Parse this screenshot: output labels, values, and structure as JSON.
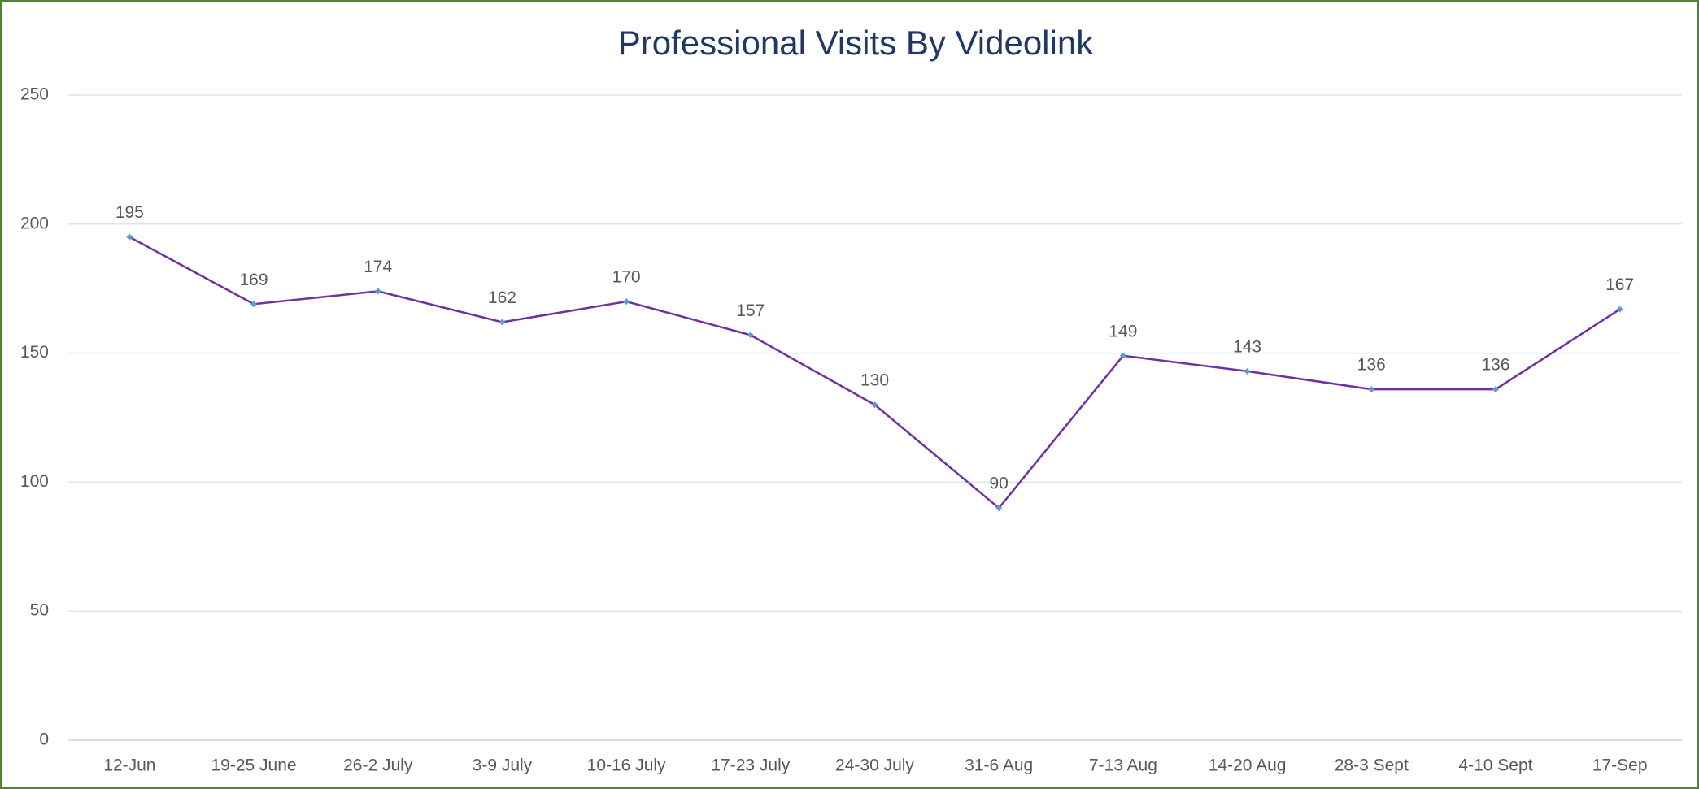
{
  "chart_data": {
    "type": "line",
    "title": "Professional Visits By Videolink",
    "categories": [
      "12-Jun",
      "19-25 June",
      "26-2 July",
      "3-9 July",
      "10-16 July",
      "17-23 July",
      "24-30 July",
      "31-6 Aug",
      "7-13 Aug",
      "14-20 Aug",
      "28-3 Sept",
      "4-10 Sept",
      "17-Sep"
    ],
    "series": [
      {
        "name": "Professional Visits",
        "color": "#7030a0",
        "marker_color": "#5b9bd5",
        "values": [
          195,
          169,
          174,
          162,
          170,
          157,
          130,
          90,
          149,
          143,
          136,
          136,
          167
        ]
      }
    ],
    "ylim": [
      0,
      250
    ],
    "yticks": [
      0,
      50,
      100,
      150,
      200,
      250
    ],
    "grid": true
  }
}
